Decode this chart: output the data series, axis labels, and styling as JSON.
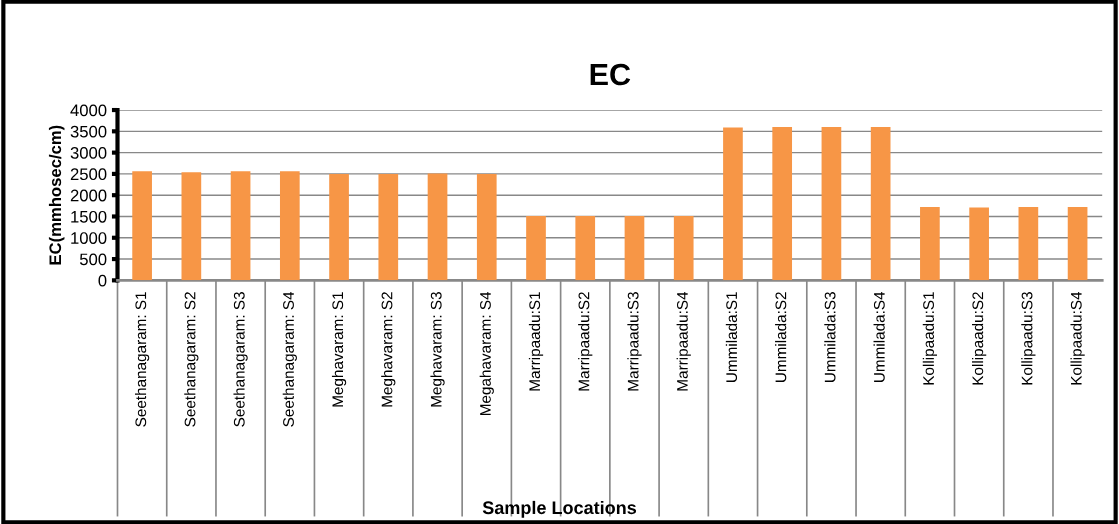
{
  "chart_data": {
    "type": "bar",
    "title": "EC",
    "xlabel": "Sample Locations",
    "ylabel": "EC(mmhosec/cm)",
    "categories": [
      "Seethanagaram: S1",
      "Seethanagaram: S2",
      "Seethanagaram: S3",
      "Seethanagaram: S4",
      "Meghavaram: S1",
      "Meghavaram: S2",
      "Meghavaram: S3",
      "Megahavaram: S4",
      "Marripaadu:S1",
      "Marripaadu:S2",
      "Marripaadu:S3",
      "Marripaadu:S4",
      "Ummilada:S1",
      "Ummilada:S2",
      "Ummilada:S3",
      "Ummilada:S4",
      "Kollipaadu:S1",
      "Kollipaadu:S2",
      "Kollipaadu:S3",
      "Kollipaadu:S4"
    ],
    "values": [
      2560,
      2540,
      2560,
      2560,
      2500,
      2500,
      2510,
      2500,
      1510,
      1510,
      1510,
      1510,
      3590,
      3600,
      3600,
      3600,
      1720,
      1710,
      1720,
      1720
    ],
    "color": "#f79646",
    "ylim": [
      0,
      4000
    ],
    "yticks": [
      0,
      500,
      1000,
      1500,
      2000,
      2500,
      3000,
      3500,
      4000
    ],
    "grid": "y",
    "legend": false
  }
}
